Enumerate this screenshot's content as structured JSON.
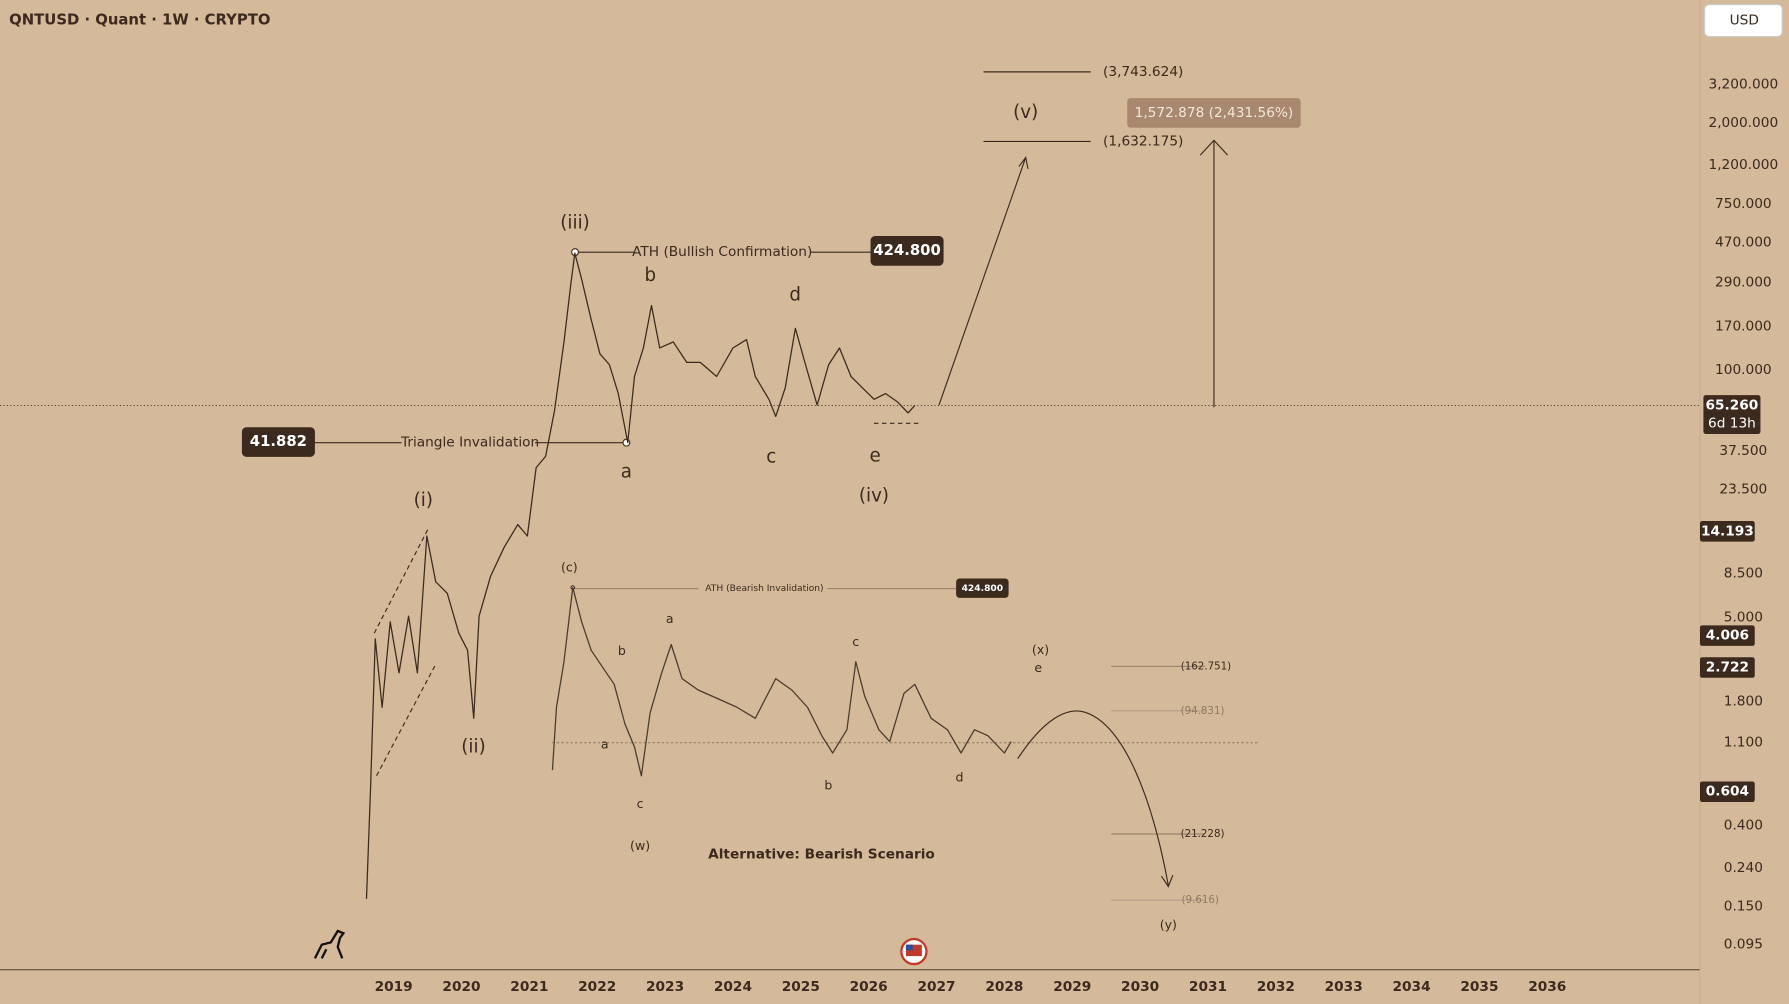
{
  "chart_data": {
    "type": "line",
    "title": "QNTUSD · Quant · 1W · CRYPTO",
    "currency": "USD",
    "log_scale": true,
    "grid": false,
    "xlim": [
      2013.2,
      2038.25
    ],
    "xticks": [
      2019,
      2020,
      2021,
      2022,
      2023,
      2024,
      2025,
      2026,
      2027,
      2028,
      2029,
      2030,
      2031,
      2032,
      2033,
      2034,
      2035,
      2036
    ],
    "ylim": [
      0.0698,
      8890
    ],
    "yticks": [
      {
        "value": 3200,
        "label": "3,200.000"
      },
      {
        "value": 2000,
        "label": "2,000.000"
      },
      {
        "value": 1200,
        "label": "1,200.000"
      },
      {
        "value": 750,
        "label": "750.000"
      },
      {
        "value": 470,
        "label": "470.000"
      },
      {
        "value": 290,
        "label": "290.000"
      },
      {
        "value": 170,
        "label": "170.000"
      },
      {
        "value": 100,
        "label": "100.000"
      },
      {
        "value": 37.5,
        "label": "37.500"
      },
      {
        "value": 23.5,
        "label": "23.500"
      },
      {
        "value": 8.5,
        "label": "8.500"
      },
      {
        "value": 5,
        "label": "5.000"
      },
      {
        "value": 1.8,
        "label": "1.800"
      },
      {
        "value": 1.1,
        "label": "1.100"
      },
      {
        "value": 0.4,
        "label": "0.400"
      },
      {
        "value": 0.24,
        "label": "0.240"
      },
      {
        "value": 0.15,
        "label": "0.150"
      },
      {
        "value": 0.095,
        "label": "0.095"
      }
    ],
    "last_price": {
      "value": 65.26,
      "label": "65.260"
    },
    "countdown": "6d 13h",
    "axis_badges": [
      {
        "value": 14.193,
        "label": "14.193"
      },
      {
        "value": 4.006,
        "label": "4.006"
      },
      {
        "value": 2.722,
        "label": "2.722"
      },
      {
        "value": 0.604,
        "label": "0.604"
      }
    ],
    "price_markers": [
      {
        "value": 424.8,
        "label": "424.800"
      },
      {
        "value": 41.882,
        "label": "41.882"
      }
    ],
    "series": [
      {
        "color": "#3b2a1d",
        "x": [
          2018.6,
          2018.66,
          2018.73,
          2018.83,
          2018.95,
          2019.08,
          2019.22,
          2019.35,
          2019.49,
          2019.62,
          2019.79,
          2019.96,
          2020.09,
          2020.18,
          2020.26,
          2020.43,
          2020.63,
          2020.83,
          2020.97,
          2021.1,
          2021.24,
          2021.37,
          2021.51,
          2021.61,
          2021.67,
          2021.77,
          2021.91,
          2022.04,
          2022.18,
          2022.31,
          2022.45,
          2022.55,
          2022.68,
          2022.8,
          2022.92,
          2023.12,
          2023.32,
          2023.52,
          2023.76,
          2024.0,
          2024.2,
          2024.33,
          2024.53,
          2024.63,
          2024.77,
          2024.92,
          2025.07,
          2025.24,
          2025.41,
          2025.57,
          2025.74,
          2025.91,
          2026.08,
          2026.25,
          2026.42,
          2026.58,
          2026.68
        ],
        "values": [
          0.165,
          0.64,
          3.85,
          1.68,
          4.74,
          2.55,
          5.08,
          2.55,
          13.4,
          7.69,
          6.7,
          4.13,
          3.36,
          1.47,
          5.08,
          8.24,
          11.7,
          15.4,
          13.4,
          30.7,
          35.2,
          61.2,
          141,
          281,
          413,
          301,
          185,
          122,
          107,
          75.3,
          41.6,
          92.7,
          131,
          219,
          131,
          141,
          110,
          110,
          92.7,
          131,
          145,
          92.7,
          70.3,
          57.1,
          80.7,
          166,
          107,
          65.6,
          107,
          131,
          92.7,
          80.7,
          70.3,
          75.3,
          68.4,
          59.6,
          65.26
        ]
      },
      {
        "color": "#4a3a2c",
        "x": [
          2021.34,
          2021.4,
          2021.51,
          2021.64,
          2021.77,
          2021.91,
          2022.08,
          2022.25,
          2022.41,
          2022.55,
          2022.65,
          2022.78,
          2022.95,
          2023.09,
          2023.25,
          2023.49,
          2023.76,
          2024.06,
          2024.33,
          2024.63,
          2024.87,
          2025.1,
          2025.31,
          2025.47,
          2025.68,
          2025.81,
          2025.94,
          2026.15,
          2026.31,
          2026.52,
          2026.68,
          2026.92,
          2027.16,
          2027.36,
          2027.56,
          2027.76,
          2028.0,
          2028.1
        ],
        "values": [
          0.785,
          1.68,
          2.92,
          7.18,
          4.74,
          3.36,
          2.73,
          2.22,
          1.37,
          1.04,
          0.733,
          1.57,
          2.55,
          3.6,
          2.38,
          2.07,
          1.88,
          1.68,
          1.47,
          2.38,
          2.07,
          1.68,
          1.19,
          0.966,
          1.28,
          2.92,
          1.93,
          1.28,
          1.11,
          1.99,
          2.22,
          1.47,
          1.28,
          0.966,
          1.28,
          1.19,
          0.966,
          1.11
        ]
      }
    ],
    "annotations": [
      "(iii)",
      "ATH (Bullish Confirmation)",
      "b",
      "d",
      "Triangle Invalidation",
      "a",
      "c",
      "e",
      "(iv)",
      "(i)",
      "(ii)",
      "(v)",
      "(3,743.624)",
      "(1,632.175)",
      "1,572.878 (2,431.56%)",
      "(c)",
      "ATH (Bearish Invalidation)",
      "424.800",
      "a",
      "b",
      "a",
      "c",
      "(w)",
      "b",
      "c",
      "d",
      "(x)",
      "e",
      "(162.751)",
      "(94.831)",
      "(21.228)",
      "(9.616)",
      "(y)",
      "Alternative: Bearish Scenario"
    ]
  }
}
